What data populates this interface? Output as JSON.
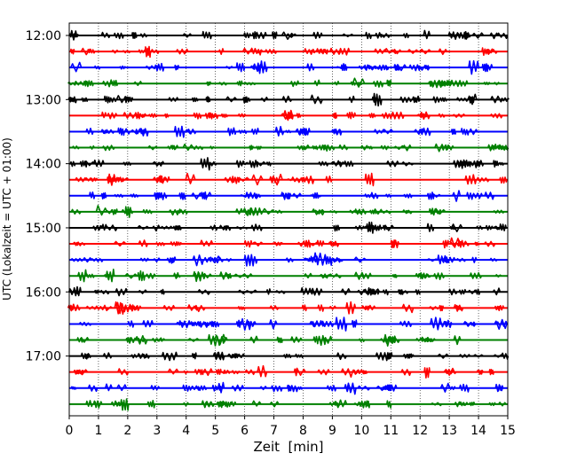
{
  "chart_data": {
    "type": "line",
    "title": "",
    "xlabel": "Zeit  [min]",
    "ylabel": "UTC (Lokalzeit = UTC + 01:00)",
    "xlim": [
      0,
      15
    ],
    "x_ticks": [
      "0",
      "1",
      "2",
      "3",
      "4",
      "5",
      "6",
      "7",
      "8",
      "9",
      "10",
      "11",
      "12",
      "13",
      "14",
      "15"
    ],
    "y_ticks": [
      {
        "label": "12:00",
        "trace": 0
      },
      {
        "label": "13:00",
        "trace": 4
      },
      {
        "label": "14:00",
        "trace": 8
      },
      {
        "label": "15:00",
        "trace": 12
      },
      {
        "label": "16:00",
        "trace": 16
      },
      {
        "label": "17:00",
        "trace": 20
      }
    ],
    "grid": "vertical dotted",
    "trace_colors": [
      "#000000",
      "#ff0000",
      "#0000ff",
      "#008000"
    ],
    "trace_count": 24,
    "trace_interval_min": 15,
    "traces_start": "12:00",
    "events_per_trace": 30
  }
}
